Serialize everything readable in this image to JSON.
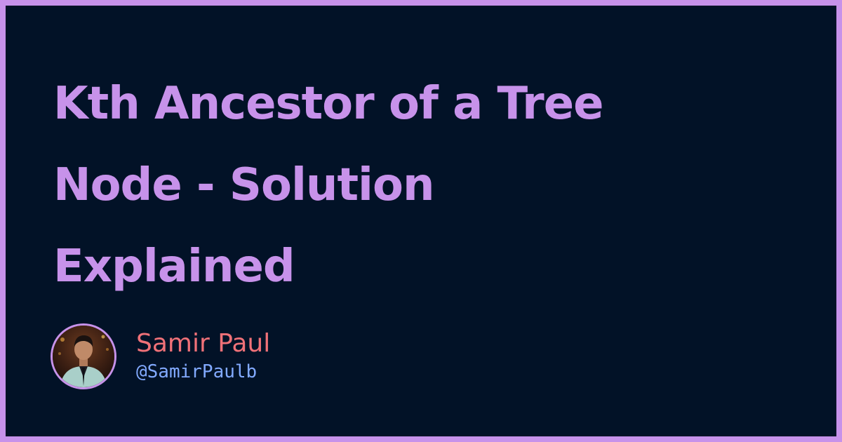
{
  "title": {
    "line1": "Kth Ancestor of a Tree",
    "line2": "Node - Solution",
    "line3": "Explained"
  },
  "author": {
    "name": "Samir Paul",
    "handle": "@SamirPaulb",
    "avatar_icon": "person-photo"
  },
  "colors": {
    "border": "#c792ea",
    "background": "#021227",
    "title": "#c792ea",
    "name": "#f07178",
    "handle": "#82aaff"
  }
}
